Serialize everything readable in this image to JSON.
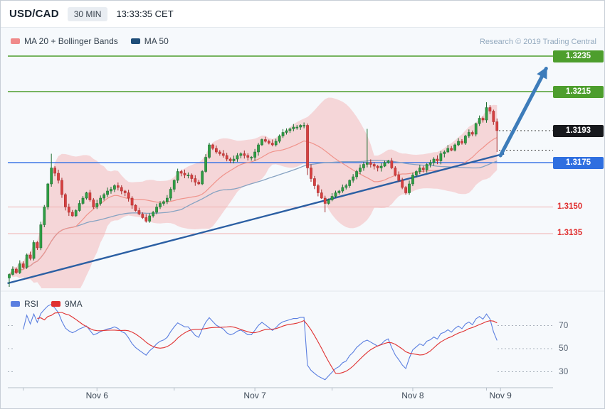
{
  "header": {
    "symbol": "USD/CAD",
    "timeframe": "30 MIN",
    "timestamp": "13:33:35 CET"
  },
  "legend_main": [
    {
      "label": "MA 20 + Bollinger Bands",
      "color": "#f08a8a"
    },
    {
      "label": "MA 50",
      "color": "#1f4e79"
    }
  ],
  "legend_rsi": [
    {
      "label": "RSI",
      "color": "#5b7fe0"
    },
    {
      "label": "9MA",
      "color": "#e03131"
    }
  ],
  "watermark": "Research © 2019 Trading Central",
  "chart_data": {
    "type": "candlestick",
    "symbol": "USD/CAD",
    "interval": "30 MIN",
    "x_axis": {
      "labels": [
        "Nov 6",
        "Nov 7",
        "Nov 8",
        "Nov 9"
      ],
      "ticks": [
        25,
        70,
        115,
        140
      ],
      "minor_ticks": [
        4,
        47,
        92,
        136
      ]
    },
    "levels": [
      {
        "label": "1.3235",
        "price": 1.3235,
        "style": "green",
        "type": "resistance"
      },
      {
        "label": "1.3215",
        "price": 1.3215,
        "style": "green",
        "type": "resistance"
      },
      {
        "label": "1.3193",
        "price": 1.3193,
        "style": "black",
        "type": "last-price"
      },
      {
        "label": "1.3175",
        "price": 1.3175,
        "style": "blue",
        "type": "support"
      },
      {
        "label": "1.3150",
        "price": 1.315,
        "style": "red-text",
        "type": "support"
      },
      {
        "label": "1.3135",
        "price": 1.3135,
        "style": "red-text",
        "type": "support"
      }
    ],
    "dotted_levels": [
      1.3193,
      1.3182
    ],
    "rsi_levels": [
      70,
      50,
      30
    ],
    "indicators": {
      "ma_fast": 20,
      "ma_slow": 50,
      "bollinger_sigma": 2,
      "rsi_period": 14,
      "rsi_ma": 9
    },
    "trendline": {
      "from_index": -0.5,
      "from_price": 1.3107,
      "to_index": 141,
      "to_price": 1.318
    },
    "arrow": {
      "from_index": 140,
      "from_price": 1.3179,
      "to_index": 153,
      "to_price": 1.3228
    },
    "price_range": {
      "min": 1.3106,
      "max": 1.3238
    },
    "closes": [
      1.3112,
      1.3115,
      1.3113,
      1.3118,
      1.3116,
      1.3123,
      1.3121,
      1.313,
      1.3127,
      1.314,
      1.315,
      1.3163,
      1.3172,
      1.3169,
      1.3165,
      1.3157,
      1.315,
      1.3147,
      1.3145,
      1.3148,
      1.3152,
      1.3155,
      1.3158,
      1.3154,
      1.315,
      1.3152,
      1.3155,
      1.3157,
      1.3159,
      1.316,
      1.3162,
      1.3161,
      1.3159,
      1.3158,
      1.3155,
      1.3151,
      1.3148,
      1.3146,
      1.3144,
      1.3142,
      1.3145,
      1.3147,
      1.315,
      1.3152,
      1.3153,
      1.3155,
      1.316,
      1.3165,
      1.317,
      1.3169,
      1.3168,
      1.3168,
      1.3166,
      1.3164,
      1.3163,
      1.317,
      1.3178,
      1.3185,
      1.3183,
      1.3181,
      1.318,
      1.3179,
      1.3177,
      1.3176,
      1.3177,
      1.3179,
      1.318,
      1.3179,
      1.3178,
      1.3178,
      1.3181,
      1.3185,
      1.3188,
      1.3187,
      1.3186,
      1.3185,
      1.3187,
      1.319,
      1.3192,
      1.3193,
      1.3194,
      1.3195,
      1.3195,
      1.3196,
      1.3196,
      1.3172,
      1.3166,
      1.3162,
      1.3158,
      1.3155,
      1.3152,
      1.3154,
      1.3156,
      1.3158,
      1.3159,
      1.3161,
      1.3162,
      1.3165,
      1.3167,
      1.317,
      1.3172,
      1.3174,
      1.3175,
      1.3174,
      1.3173,
      1.3172,
      1.3173,
      1.3175,
      1.3176,
      1.3172,
      1.3168,
      1.3165,
      1.3161,
      1.3158,
      1.3163,
      1.3168,
      1.317,
      1.3172,
      1.3171,
      1.3174,
      1.3175,
      1.3177,
      1.3176,
      1.318,
      1.3181,
      1.3183,
      1.3182,
      1.3185,
      1.3187,
      1.3186,
      1.319,
      1.3192,
      1.3191,
      1.3197,
      1.32,
      1.3199,
      1.3206,
      1.3204,
      1.3198,
      1.3193
    ],
    "wick_overrides": {
      "0": {
        "low": 1.3105
      },
      "12": {
        "high": 1.318
      },
      "85": {
        "low": 1.3168
      },
      "90": {
        "low": 1.3147
      },
      "102": {
        "high": 1.3194
      },
      "136": {
        "high": 1.3209
      },
      "139": {
        "low": 1.3181
      }
    },
    "colors": {
      "up": "#2f9e44",
      "up_border": "#1a6b2f",
      "down": "#d64040",
      "down_border": "#a52a2a",
      "bollinger_fill": "rgba(244,158,158,0.38)",
      "ma20": "#f0938b",
      "ma50": "#87a3c2",
      "trendline": "#2b5fa3",
      "arrow": "#3d7cba",
      "green_level": "#4d9e2d",
      "blue_level": "#3e77e6",
      "pink_level": "#f0aeae",
      "red_text": "#e03131",
      "black_label": "#17191d",
      "rsi": "#5b7fe0",
      "rsi_ma": "#e03131",
      "axis": "#b6bfc9",
      "grid_dotted": "#a9b2bd"
    }
  }
}
